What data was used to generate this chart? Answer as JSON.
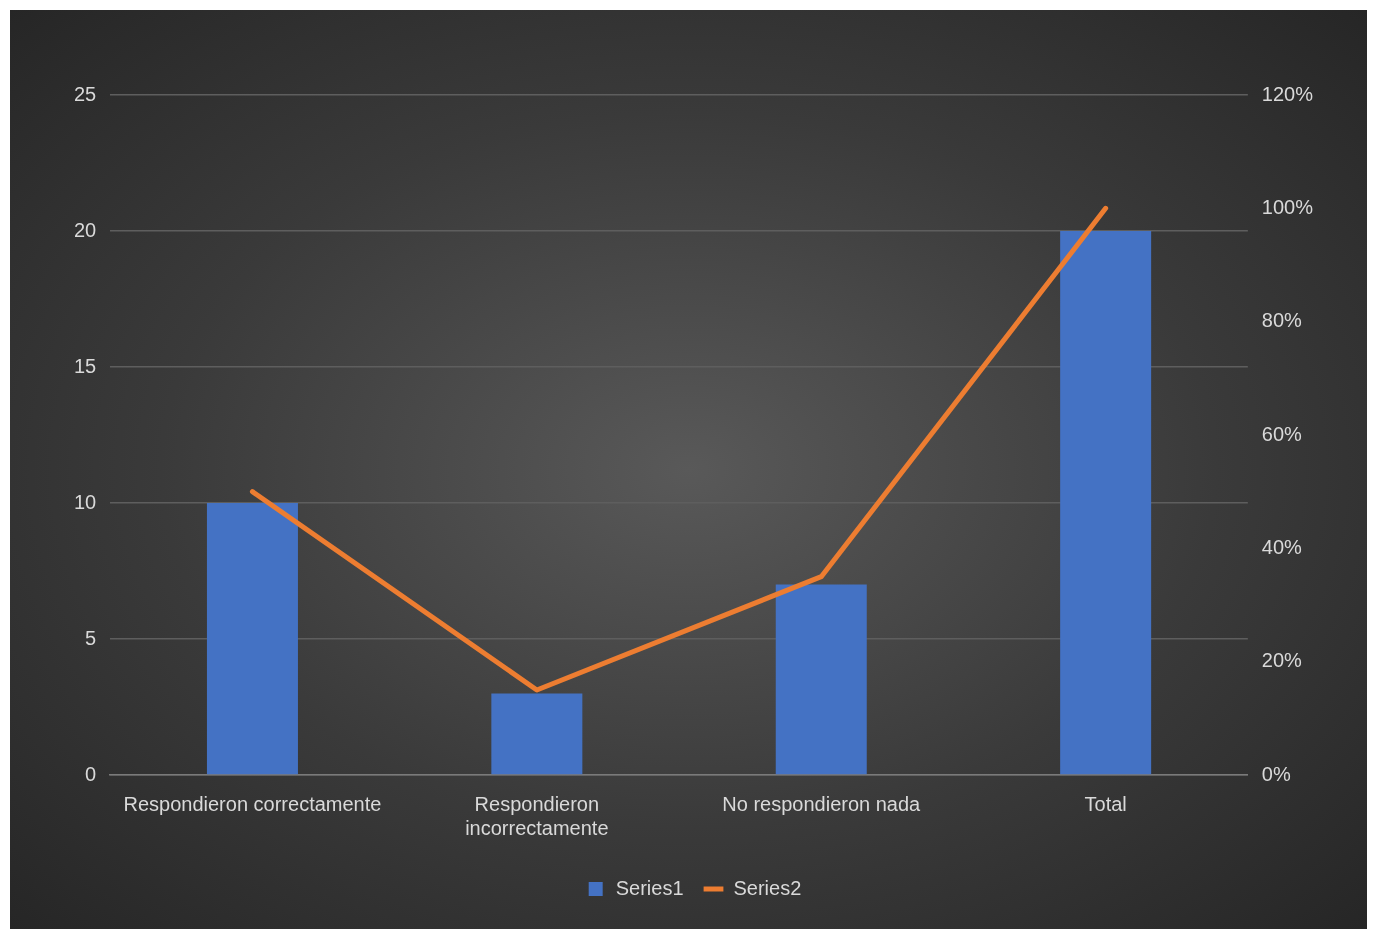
{
  "chart_data": {
    "type": "bar",
    "categories": [
      "Respondieron correctamente",
      "Respondieron incorrectamente",
      "No respondieron nada",
      "Total"
    ],
    "series": [
      {
        "name": "Series1",
        "color": "#4472c4",
        "values": [
          10,
          3,
          7,
          20
        ]
      },
      {
        "name": "Series2",
        "type": "line",
        "axis": "y2",
        "color": "#ed7d31",
        "values": [
          50,
          15,
          35,
          100
        ]
      }
    ],
    "ylim": [
      0,
      25
    ],
    "yticks": [
      0,
      5,
      10,
      15,
      20,
      25
    ],
    "y2lim": [
      0,
      120
    ],
    "y2ticks": [
      {
        "value": 0,
        "label": "0%"
      },
      {
        "value": 20,
        "label": "20%"
      },
      {
        "value": 40,
        "label": "40%"
      },
      {
        "value": 60,
        "label": "60%"
      },
      {
        "value": 80,
        "label": "80%"
      },
      {
        "value": 100,
        "label": "100%"
      },
      {
        "value": 120,
        "label": "120%"
      }
    ],
    "grid": "y",
    "legend": "bottom",
    "marker": "none",
    "line_style": "solid"
  }
}
